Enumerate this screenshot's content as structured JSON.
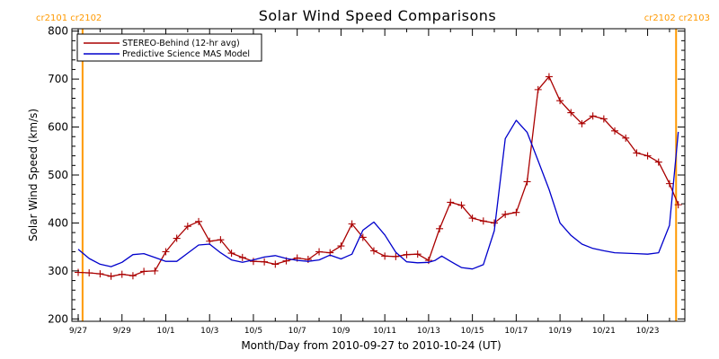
{
  "chart_data": {
    "type": "line",
    "title": "Solar Wind Speed Comparisons",
    "xlabel": "Month/Day from 2010-09-27 to 2010-10-24 (UT)",
    "ylabel": "Solar Wind Speed (km/s)",
    "ylim": [
      195,
      805
    ],
    "xlim": [
      0,
      27.7
    ],
    "x_units": "days since 2010-09-27",
    "grid": false,
    "legend_position": "top-left",
    "accent_color": "#ff9900",
    "y_ticks": [
      200,
      300,
      400,
      500,
      600,
      700,
      800
    ],
    "y_tick_labels": [
      "200",
      "300",
      "400",
      "500",
      "600",
      "700",
      "800"
    ],
    "x_ticks": [
      0,
      2,
      4,
      6,
      8,
      10,
      12,
      14,
      16,
      18,
      20,
      22,
      24,
      26
    ],
    "x_tick_labels": [
      "9/27",
      "9/29",
      "10/1",
      "10/3",
      "10/5",
      "10/7",
      "10/9",
      "10/11",
      "10/13",
      "10/15",
      "10/17",
      "10/19",
      "10/21",
      "10/23"
    ],
    "vertical_markers": [
      {
        "x": 0.2,
        "color": "#ff9900"
      },
      {
        "x": 27.3,
        "color": "#ff9900"
      }
    ],
    "corner_labels": {
      "left": "cr2101 cr2102",
      "right": "cr2102 cr2103"
    },
    "series": [
      {
        "name": "STEREO-Behind (12-hr avg)",
        "color": "#aa0000",
        "marker": "plus",
        "x": [
          0,
          0.5,
          1,
          1.5,
          2,
          2.5,
          3,
          3.5,
          4,
          4.5,
          5,
          5.5,
          6,
          6.5,
          7,
          7.5,
          8,
          8.5,
          9,
          9.5,
          10,
          10.5,
          11,
          11.5,
          12,
          12.5,
          13,
          13.5,
          14,
          14.5,
          15,
          15.5,
          16,
          16.5,
          17,
          17.5,
          18,
          18.5,
          19,
          19.5,
          20,
          20.5,
          21,
          21.5,
          22,
          22.5,
          23,
          23.5,
          24,
          24.5,
          25,
          25.5,
          26,
          26.5,
          27,
          27.4
        ],
        "y": [
          297,
          296,
          294,
          289,
          293,
          290,
          299,
          300,
          340,
          368,
          393,
          403,
          362,
          365,
          337,
          328,
          320,
          319,
          314,
          321,
          327,
          324,
          340,
          338,
          352,
          398,
          370,
          342,
          331,
          330,
          334,
          335,
          322,
          388,
          443,
          437,
          410,
          404,
          400,
          418,
          422,
          486,
          678,
          705,
          655,
          630,
          607,
          623,
          617,
          592,
          577,
          546,
          540,
          527,
          482,
          438
        ]
      },
      {
        "name": "Predictive Science MAS Model",
        "color": "#0000cc",
        "marker": "none",
        "x": [
          0,
          0.5,
          1,
          1.5,
          2,
          2.5,
          3,
          3.5,
          4,
          4.5,
          5,
          5.5,
          6,
          6.5,
          7,
          7.5,
          8,
          8.5,
          9,
          9.5,
          10,
          10.5,
          11,
          11.5,
          12,
          12.5,
          13,
          13.5,
          14,
          14.5,
          15,
          15.5,
          16,
          16.3,
          16.6,
          17,
          17.5,
          18,
          18.5,
          19,
          19.5,
          20,
          20.5,
          21,
          21.5,
          22,
          22.5,
          23,
          23.5,
          24,
          24.5,
          25,
          25.5,
          26,
          26.5,
          27,
          27.4
        ],
        "y": [
          345,
          326,
          314,
          309,
          318,
          334,
          336,
          328,
          320,
          320,
          337,
          354,
          356,
          338,
          323,
          318,
          323,
          329,
          332,
          326,
          322,
          320,
          323,
          333,
          325,
          335,
          385,
          402,
          375,
          339,
          319,
          317,
          318,
          322,
          331,
          320,
          307,
          304,
          313,
          384,
          576,
          614,
          589,
          530,
          470,
          400,
          374,
          356,
          347,
          342,
          338,
          337,
          336,
          335,
          338,
          395,
          590
        ]
      }
    ]
  }
}
